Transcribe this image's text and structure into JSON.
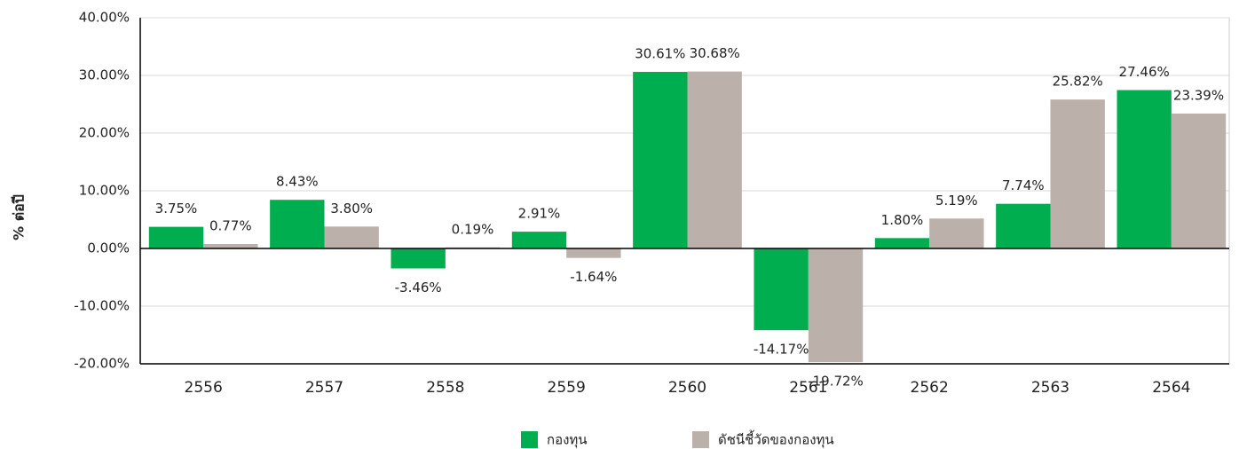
{
  "chart_data": {
    "type": "bar",
    "y_axis_label": "% ต่อปี",
    "categories": [
      "2556",
      "2557",
      "2558",
      "2559",
      "2560",
      "2561",
      "2562",
      "2563",
      "2564"
    ],
    "series": [
      {
        "name": "กองทุน",
        "color": "#00ad4f",
        "values": [
          3.75,
          8.43,
          -3.46,
          2.91,
          30.61,
          -14.17,
          1.8,
          7.74,
          27.46
        ],
        "value_labels": [
          "3.75%",
          "8.43%",
          "-3.46%",
          "2.91%",
          "30.61%",
          "-14.17%",
          "1.80%",
          "7.74%",
          "27.46%"
        ]
      },
      {
        "name": "ดัชนีชี้วัดของกองทุน",
        "color": "#bcb1aa",
        "values": [
          0.77,
          3.8,
          0.19,
          -1.64,
          30.68,
          -19.72,
          5.19,
          25.82,
          23.39
        ],
        "value_labels": [
          "0.77%",
          "3.80%",
          "0.19%",
          "-1.64%",
          "30.68%",
          "-19.72%",
          "5.19%",
          "25.82%",
          "23.39%"
        ]
      }
    ],
    "ylim": [
      -20,
      40
    ],
    "yticks": [
      {
        "value": -20,
        "label": "-20.00%"
      },
      {
        "value": -10,
        "label": "-10.00%"
      },
      {
        "value": 0,
        "label": "0.00%"
      },
      {
        "value": 10,
        "label": "10.00%"
      },
      {
        "value": 20,
        "label": "20.00%"
      },
      {
        "value": 30,
        "label": "30.00%"
      },
      {
        "value": 40,
        "label": "40.00%"
      }
    ],
    "grid": true,
    "legend": "bottom"
  }
}
